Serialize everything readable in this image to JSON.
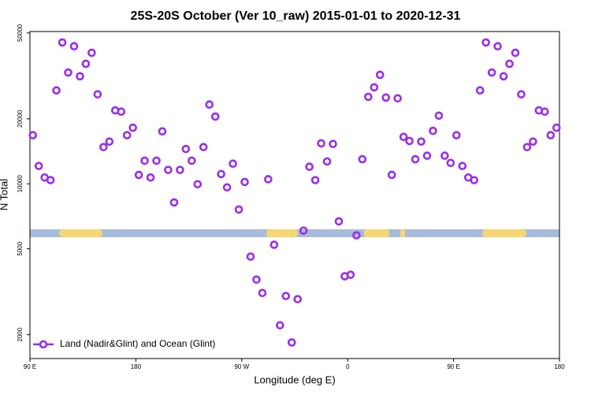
{
  "chart_data": {
    "type": "scatter",
    "title": "25S-20S October (Ver 10_raw)   2015-01-01 to 2020-12-31",
    "xlabel": "Longitude (deg E)",
    "ylabel": "N Total",
    "ylog": true,
    "legend": "lower left",
    "xlim": [
      -270,
      180
    ],
    "xticks": [
      {
        "value": -270,
        "label": "90 E"
      },
      {
        "value": -180,
        "label": "180"
      },
      {
        "value": -90,
        "label": "90 W"
      },
      0,
      {
        "value": 90,
        "label": "90 E"
      },
      180
    ],
    "ylim": [
      1550,
      50800
    ],
    "yticks": [
      2000,
      5000,
      10000,
      20000,
      50000
    ],
    "series": [
      {
        "name": "Land (Nadir&Glint) and Ocean (Glint)",
        "color": "#9b2ee8",
        "x": [
          -267.5,
          -262.5,
          -257.5,
          -252.5,
          -247.5,
          -242.5,
          -237.5,
          -232.5,
          -227.5,
          -222.5,
          -217.5,
          -212.5,
          -207.5,
          -202.5,
          -197.5,
          -192.5,
          -187.5,
          -182.5,
          -177.5,
          -172.5,
          -167.5,
          -162.5,
          -157.5,
          -152.5,
          -147.5,
          -142.5,
          -137.5,
          -132.5,
          -127.5,
          -122.5,
          -117.5,
          -112.5,
          -107.5,
          -102.5,
          -97.5,
          -92.5,
          -87.5,
          -82.5,
          -77.5,
          -72.5,
          -67.5,
          -62.5,
          -57.5,
          -52.5,
          -47.5,
          -42.5,
          -37.5,
          -32.5,
          -27.5,
          -22.5,
          -17.5,
          -12.5,
          -7.5,
          -2.5,
          2.5,
          7.5,
          12.5,
          17.5,
          22.5,
          27.5,
          32.5,
          37.5,
          42.5,
          47.5,
          52.5,
          57.5,
          62.5,
          67.5,
          72.5,
          77.5,
          82.5,
          87.5,
          92.5,
          97.5,
          102.5,
          107.5,
          112.5,
          117.5,
          122.5,
          127.5,
          132.5,
          137.5,
          142.5,
          147.5,
          152.5,
          157.5,
          162.5,
          167.5,
          172.5,
          177.5
        ],
        "values": [
          16800,
          12100,
          10700,
          10400,
          27100,
          45200,
          32800,
          43400,
          31500,
          36000,
          40500,
          26000,
          14800,
          15700,
          21900,
          21600,
          16800,
          18200,
          11000,
          12800,
          10700,
          12800,
          17500,
          11600,
          8200,
          11600,
          14500,
          12800,
          9960,
          14800,
          23300,
          20500,
          11100,
          9630,
          12400,
          7600,
          10200,
          4600,
          3600,
          3120,
          10500,
          5220,
          2210,
          3020,
          1840,
          2920,
          6070,
          12000,
          10400,
          15400,
          12700,
          15300,
          6700,
          3730,
          3790,
          5770,
          13000,
          25300,
          28000,
          32000,
          25100,
          11000,
          24900,
          16500,
          15800,
          13000,
          15700,
          13500,
          17600,
          20700,
          13500,
          12500,
          16800,
          12100,
          10700,
          10400,
          27100,
          45200,
          32800,
          43400,
          31500,
          36000,
          40500,
          26000,
          14800,
          15700,
          21900,
          21600,
          16800,
          18200
        ]
      }
    ]
  }
}
